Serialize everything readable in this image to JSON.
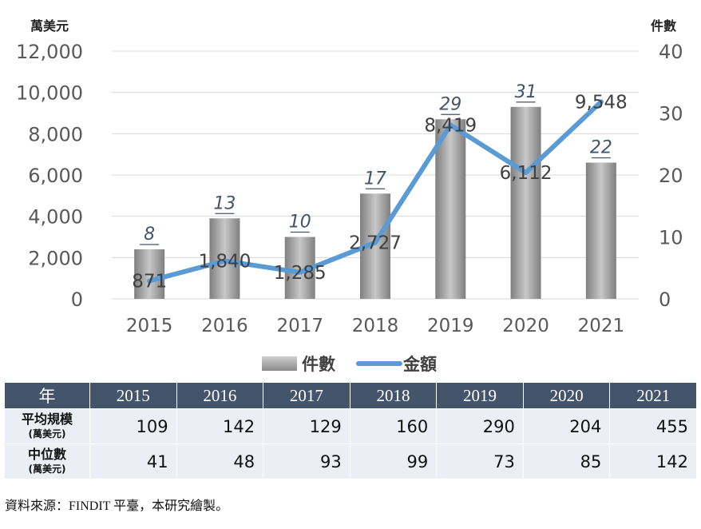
{
  "chart_data": {
    "type": "bar+line",
    "left_axis_label": "萬美元",
    "right_axis_label": "件數",
    "categories": [
      "2015",
      "2016",
      "2017",
      "2018",
      "2019",
      "2020",
      "2021"
    ],
    "left_ticks": [
      "0",
      "2,000",
      "4,000",
      "6,000",
      "8,000",
      "10,000",
      "12,000"
    ],
    "right_ticks": [
      "0",
      "10",
      "20",
      "30",
      "40"
    ],
    "ylim_left": [
      0,
      12000
    ],
    "ylim_right": [
      0,
      40
    ],
    "series": [
      {
        "name": "件數",
        "kind": "bar",
        "axis": "right",
        "color": "#A6A6A6",
        "values": [
          8,
          13,
          10,
          17,
          29,
          31,
          22
        ],
        "labels": [
          "8",
          "13",
          "10",
          "17",
          "29",
          "31",
          "22"
        ]
      },
      {
        "name": "金額",
        "kind": "line",
        "axis": "left",
        "color": "#5B9BD5",
        "values": [
          871,
          1840,
          1285,
          2727,
          8419,
          6112,
          9548
        ],
        "labels": [
          "871",
          "1,840",
          "1,285",
          "2,727",
          "8,419",
          "6,112",
          "9,548"
        ]
      }
    ],
    "grid": true,
    "legend_position": "bottom"
  },
  "table": {
    "headers": [
      "年",
      "2015",
      "2016",
      "2017",
      "2018",
      "2019",
      "2020",
      "2021"
    ],
    "rows": [
      {
        "label": "平均規模",
        "sublabel": "(萬美元)",
        "values": [
          "109",
          "142",
          "129",
          "160",
          "290",
          "204",
          "455"
        ]
      },
      {
        "label": "中位數",
        "sublabel": "(萬美元)",
        "values": [
          "41",
          "48",
          "93",
          "99",
          "73",
          "85",
          "142"
        ]
      }
    ]
  },
  "source_note": "資料來源：FINDIT 平臺，本研究繪製。"
}
